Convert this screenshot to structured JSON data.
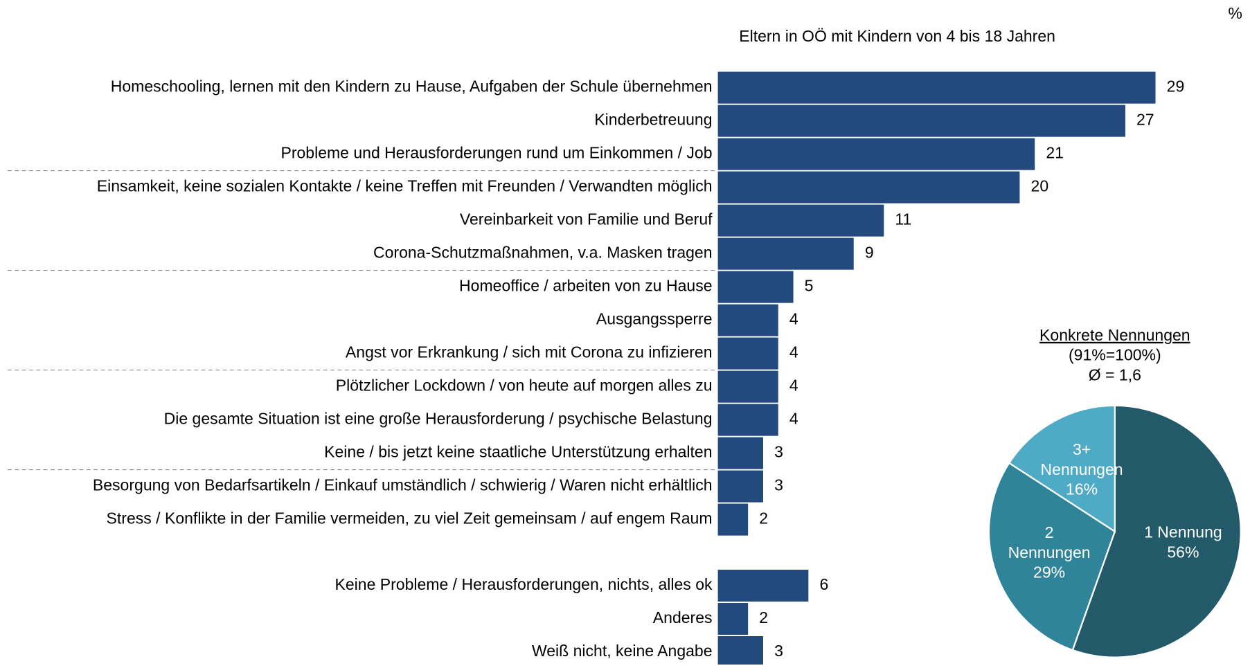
{
  "page": {
    "unit": "%",
    "subtitle": "Eltern in OÖ mit Kindern von 4 bis 18 Jahren"
  },
  "chart_data": [
    {
      "type": "bar",
      "orientation": "horizontal",
      "color": "#234a7c",
      "xlim": [
        0,
        29
      ],
      "categories": [
        "Homeschooling, lernen mit den Kindern zu Hause, Aufgaben der Schule übernehmen",
        "Kinderbetreuung",
        "Probleme und Herausforderungen rund um Einkommen / Job",
        "Einsamkeit, keine sozialen Kontakte / keine Treffen mit Freunden / Verwandten möglich",
        "Vereinbarkeit von Familie und Beruf",
        "Corona-Schutzmaßnahmen, v.a. Masken tragen",
        "Homeoffice / arbeiten von zu Hause",
        "Ausgangssperre",
        "Angst vor Erkrankung / sich mit Corona zu infizieren",
        "Plötzlicher Lockdown / von heute auf morgen alles zu",
        "Die gesamte Situation ist eine große Herausforderung / psychische Belastung",
        "Keine / bis jetzt keine staatliche Unterstützung erhalten",
        "Besorgung von Bedarfsartikeln / Einkauf umständlich / schwierig / Waren nicht erhältlich",
        "Stress / Konflikte in der Familie vermeiden, zu viel Zeit gemeinsam / auf engem Raum"
      ],
      "values": [
        29,
        27,
        21,
        20,
        11,
        9,
        5,
        4,
        4,
        4,
        4,
        3,
        3,
        2
      ]
    },
    {
      "type": "bar",
      "orientation": "horizontal",
      "color": "#234a7c",
      "xlim": [
        0,
        29
      ],
      "categories": [
        "Keine Probleme / Herausforderungen, nichts, alles ok",
        "Anderes",
        "Weiß nicht, keine Angabe"
      ],
      "values": [
        6,
        2,
        3
      ]
    },
    {
      "type": "pie",
      "title": "Konkrete Nennungen",
      "subtitle": [
        "(91%=100%)",
        "Ø = 1,6"
      ],
      "categories": [
        "1 Nennung",
        "2 Nennungen",
        "3+ Nennungen"
      ],
      "label_lines": [
        [
          "1 Nennung"
        ],
        [
          "2",
          "Nennungen"
        ],
        [
          "3+",
          "Nennungen"
        ]
      ],
      "values": [
        56,
        29,
        16
      ],
      "value_labels": [
        "56%",
        "29%",
        "16%"
      ],
      "colors": [
        "#235a69",
        "#2f8499",
        "#4eaac5"
      ]
    }
  ]
}
